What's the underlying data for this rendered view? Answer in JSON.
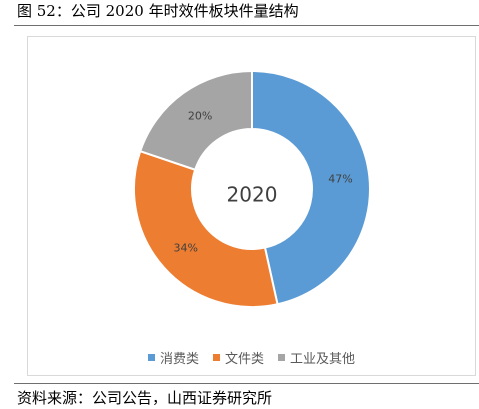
{
  "figure_title": "图 52：公司 2020 年时效件板块件量结构",
  "source": "资料来源：公司公告，山西证券研究所",
  "chart_data": {
    "type": "pie",
    "title": "",
    "center_label": "2020",
    "legend_position": "bottom",
    "slices": [
      {
        "name": "消费类",
        "value": 47,
        "label": "47%",
        "color": "#5b9bd5"
      },
      {
        "name": "文件类",
        "value": 34,
        "label": "34%",
        "color": "#ed7d31"
      },
      {
        "name": "工业及其他",
        "value": 20,
        "label": "20%",
        "color": "#a5a5a5"
      }
    ]
  }
}
